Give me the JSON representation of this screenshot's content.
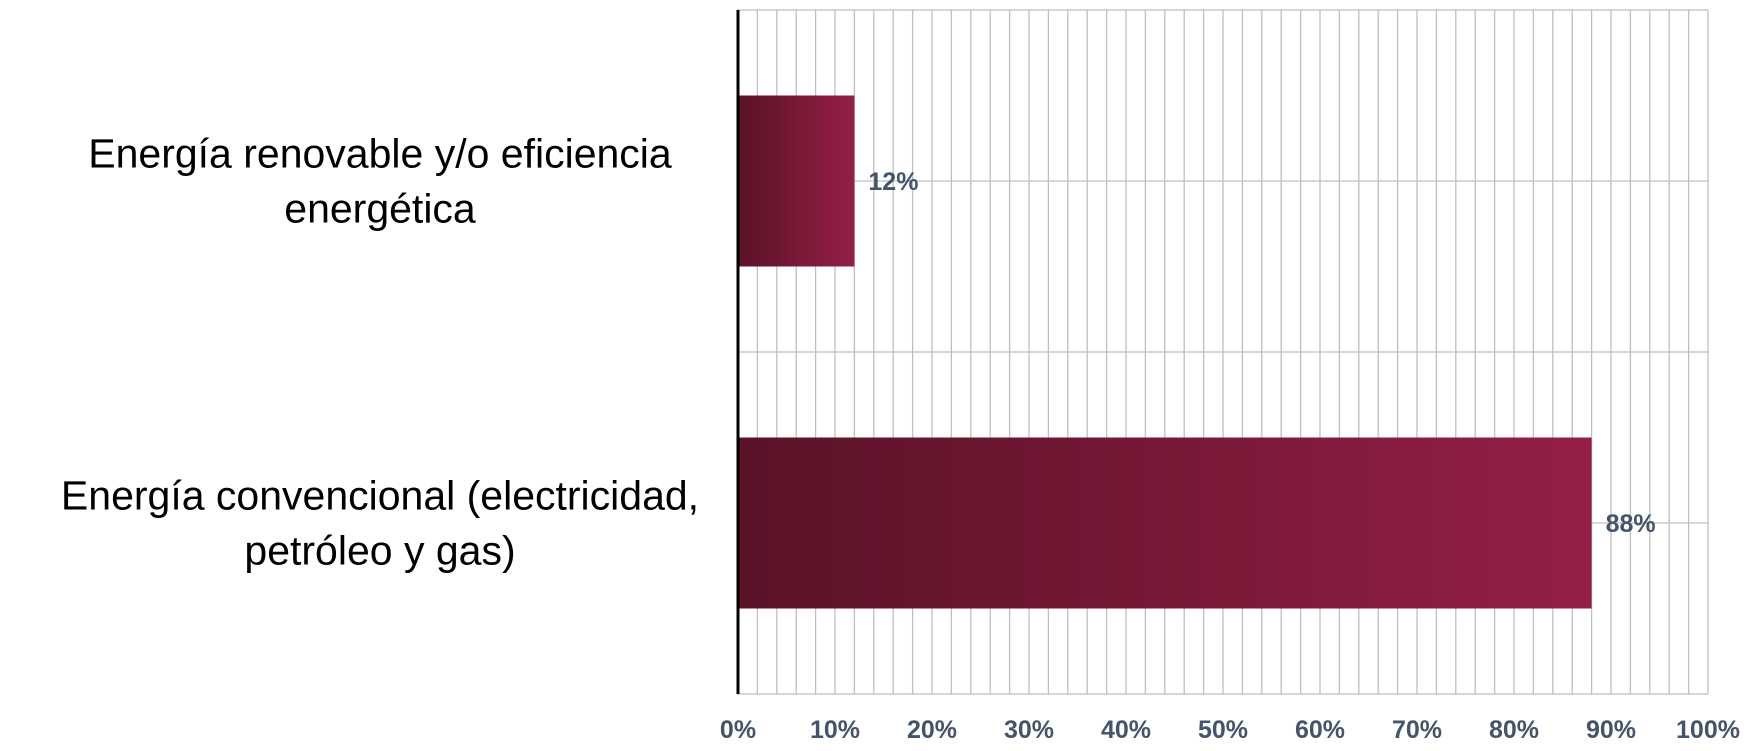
{
  "chart_data": {
    "type": "bar",
    "orientation": "horizontal",
    "categories": [
      [
        "Energía renovable y/o eficiencia",
        "energética"
      ],
      [
        "Energía convencional (electricidad,",
        "petróleo y gas)"
      ]
    ],
    "values": [
      12,
      88
    ],
    "data_labels": [
      "12%",
      "88%"
    ],
    "xlim": [
      0,
      100
    ],
    "xticks": [
      0,
      10,
      20,
      30,
      40,
      50,
      60,
      70,
      80,
      90,
      100
    ],
    "xtick_labels": [
      "0%",
      "10%",
      "20%",
      "30%",
      "40%",
      "50%",
      "60%",
      "70%",
      "80%",
      "90%",
      "100%"
    ],
    "title": "",
    "xlabel": "",
    "ylabel": "",
    "grid": true,
    "legend": false,
    "colors": {
      "bar_start": "#5a1227",
      "bar_end": "#941f45",
      "axis": "#000000",
      "grid": "#bfbfbf",
      "tick_text": "#44546a",
      "label_text": "#000000"
    }
  }
}
